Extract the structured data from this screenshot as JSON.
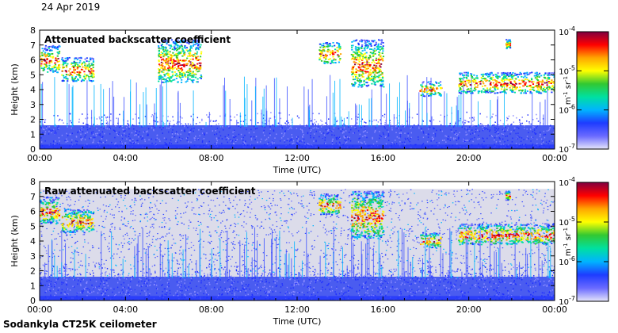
{
  "date_label": "24 Apr 2019",
  "footer_label": "Sodankyla CT25K ceilometer",
  "chart_data": [
    {
      "type": "heatmap",
      "title": "Attenuated backscatter coefficient",
      "xlabel": "Time (UTC)",
      "ylabel": "Height (km)",
      "x_ticks": [
        "00:00",
        "04:00",
        "08:00",
        "12:00",
        "16:00",
        "20:00",
        "00:00"
      ],
      "y_ticks": [
        "0",
        "1",
        "2",
        "3",
        "4",
        "5",
        "6",
        "7",
        "8"
      ],
      "xlim_hours": [
        0,
        24
      ],
      "ylim_km": [
        0,
        8
      ],
      "colorbar": {
        "scale": "log",
        "range": [
          1e-07,
          0.0001
        ],
        "tick_labels": [
          "10-7",
          "10-6",
          "10-5",
          "10-4"
        ],
        "unit_label": "m-1 sr-1",
        "colors": [
          "#e6e6fa",
          "#6a6aff",
          "#1e3cff",
          "#00b4ff",
          "#00e0a0",
          "#32c832",
          "#ffff00",
          "#ffa500",
          "#ff0000",
          "#800040"
        ]
      },
      "cloud_layers": [
        {
          "t_start": 0.0,
          "t_end": 0.9,
          "h_low": 5.2,
          "h_high": 7.0
        },
        {
          "t_start": 1.0,
          "t_end": 2.5,
          "h_low": 4.6,
          "h_high": 6.2
        },
        {
          "t_start": 5.5,
          "t_end": 7.5,
          "h_low": 4.5,
          "h_high": 7.4
        },
        {
          "t_start": 13.0,
          "t_end": 14.0,
          "h_low": 5.8,
          "h_high": 7.2
        },
        {
          "t_start": 14.5,
          "t_end": 16.0,
          "h_low": 4.2,
          "h_high": 7.4
        },
        {
          "t_start": 17.7,
          "t_end": 18.7,
          "h_low": 3.6,
          "h_high": 4.6
        },
        {
          "t_start": 19.5,
          "t_end": 24.0,
          "h_low": 3.8,
          "h_high": 5.2
        },
        {
          "t_start": 21.7,
          "t_end": 21.9,
          "h_low": 6.8,
          "h_high": 7.4
        }
      ],
      "boundary_layer_km": 1.6
    },
    {
      "type": "heatmap",
      "title": "Raw attenuated backscatter coefficient",
      "xlabel": "Time (UTC)",
      "ylabel": "Height (km)",
      "x_ticks": [
        "00:00",
        "04:00",
        "08:00",
        "12:00",
        "16:00",
        "20:00",
        "00:00"
      ],
      "y_ticks": [
        "0",
        "1",
        "2",
        "3",
        "4",
        "5",
        "6",
        "7",
        "8"
      ],
      "xlim_hours": [
        0,
        24
      ],
      "ylim_km": [
        0,
        8
      ],
      "colorbar": {
        "scale": "log",
        "range": [
          1e-07,
          0.0001
        ],
        "tick_labels": [
          "10-7",
          "10-6",
          "10-5",
          "10-4"
        ],
        "unit_label": "m-1 sr-1",
        "colors": [
          "#e6e6fa",
          "#6a6aff",
          "#1e3cff",
          "#00b4ff",
          "#00e0a0",
          "#32c832",
          "#ffff00",
          "#ffa500",
          "#ff0000",
          "#800040"
        ]
      },
      "cloud_layers": [
        {
          "t_start": 0.0,
          "t_end": 0.9,
          "h_low": 5.2,
          "h_high": 7.0
        },
        {
          "t_start": 1.0,
          "t_end": 2.5,
          "h_low": 4.6,
          "h_high": 6.2
        },
        {
          "t_start": 13.0,
          "t_end": 14.0,
          "h_low": 5.8,
          "h_high": 7.2
        },
        {
          "t_start": 14.5,
          "t_end": 16.0,
          "h_low": 4.2,
          "h_high": 7.4
        },
        {
          "t_start": 17.7,
          "t_end": 18.7,
          "h_low": 3.6,
          "h_high": 4.6
        },
        {
          "t_start": 19.5,
          "t_end": 24.0,
          "h_low": 3.8,
          "h_high": 5.2
        },
        {
          "t_start": 21.7,
          "t_end": 21.9,
          "h_low": 6.8,
          "h_high": 7.4
        }
      ],
      "boundary_layer_km": 1.6,
      "noise_top_km": 7.5
    }
  ]
}
